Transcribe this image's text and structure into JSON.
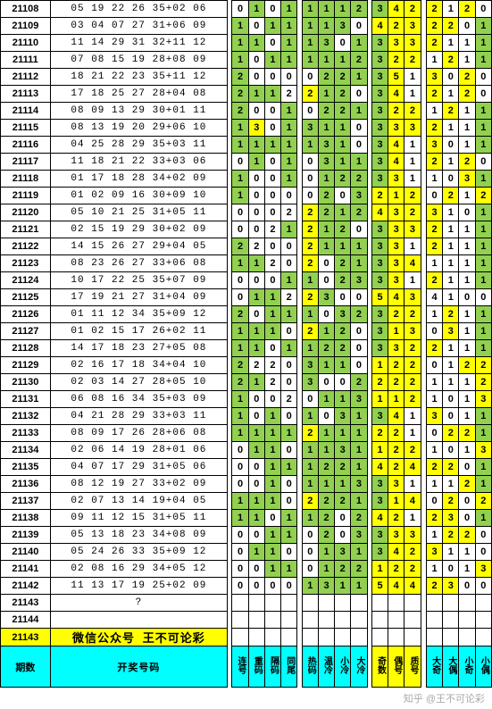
{
  "rows": [
    {
      "p": "21108",
      "n": "05 19 22 26 35+02 06",
      "s": [
        0,
        1,
        0,
        1,
        1,
        1,
        1,
        2,
        3,
        4,
        2,
        2,
        1,
        2,
        0
      ]
    },
    {
      "p": "21109",
      "n": "03 04 07 27 31+06 09",
      "s": [
        1,
        0,
        1,
        1,
        1,
        1,
        3,
        0,
        4,
        2,
        3,
        2,
        2,
        0,
        1
      ]
    },
    {
      "p": "21110",
      "n": "11 14 29 31 32+11 12",
      "s": [
        1,
        1,
        0,
        1,
        1,
        3,
        0,
        1,
        3,
        3,
        3,
        2,
        1,
        1,
        1
      ]
    },
    {
      "p": "21111",
      "n": "07 08 15 19 28+08 09",
      "s": [
        1,
        0,
        1,
        1,
        1,
        1,
        1,
        2,
        3,
        2,
        2,
        1,
        2,
        1,
        1
      ]
    },
    {
      "p": "21112",
      "n": "18 21 22 23 35+11 12",
      "s": [
        2,
        0,
        0,
        0,
        0,
        2,
        2,
        1,
        3,
        5,
        1,
        3,
        0,
        2,
        0
      ]
    },
    {
      "p": "21113",
      "n": "17 18 25 27 28+04 08",
      "s": [
        2,
        1,
        1,
        2,
        2,
        1,
        2,
        0,
        3,
        4,
        1,
        2,
        1,
        2,
        0
      ]
    },
    {
      "p": "21114",
      "n": "08 09 13 29 30+01 11",
      "s": [
        2,
        0,
        0,
        1,
        0,
        2,
        2,
        1,
        3,
        2,
        2,
        1,
        2,
        1,
        1
      ]
    },
    {
      "p": "21115",
      "n": "08 13 19 20 29+06 10",
      "s": [
        1,
        3,
        0,
        1,
        3,
        1,
        1,
        0,
        3,
        3,
        3,
        2,
        1,
        1,
        1
      ]
    },
    {
      "p": "21116",
      "n": "04 25 28 29 35+03 11",
      "s": [
        1,
        1,
        1,
        1,
        1,
        3,
        1,
        0,
        3,
        4,
        1,
        3,
        0,
        1,
        1
      ]
    },
    {
      "p": "21117",
      "n": "11 18 21 22 33+03 06",
      "s": [
        0,
        1,
        0,
        1,
        0,
        3,
        1,
        1,
        3,
        4,
        1,
        2,
        1,
        2,
        0
      ]
    },
    {
      "p": "21118",
      "n": "01 17 18 28 34+02 09",
      "s": [
        1,
        0,
        0,
        1,
        0,
        1,
        2,
        2,
        3,
        3,
        1,
        1,
        0,
        3,
        1
      ]
    },
    {
      "p": "21119",
      "n": "01 02 09 16 30+09 10",
      "s": [
        1,
        0,
        0,
        0,
        0,
        2,
        0,
        3,
        2,
        1,
        2,
        0,
        2,
        1,
        2
      ]
    },
    {
      "p": "21120",
      "n": "05 10 21 25 31+05 11",
      "s": [
        0,
        0,
        0,
        2,
        2,
        2,
        1,
        2,
        4,
        3,
        2,
        3,
        1,
        0,
        1
      ]
    },
    {
      "p": "21121",
      "n": "02 15 19 29 30+02 09",
      "s": [
        0,
        0,
        2,
        1,
        2,
        1,
        2,
        0,
        3,
        3,
        3,
        2,
        1,
        1,
        1
      ]
    },
    {
      "p": "21122",
      "n": "14 15 26 27 29+04 05",
      "s": [
        2,
        2,
        0,
        0,
        2,
        1,
        1,
        1,
        3,
        3,
        1,
        2,
        1,
        1,
        1
      ]
    },
    {
      "p": "21123",
      "n": "08 23 26 27 33+06 08",
      "s": [
        1,
        1,
        2,
        0,
        2,
        0,
        2,
        1,
        3,
        3,
        4,
        1,
        1,
        1,
        1
      ]
    },
    {
      "p": "21124",
      "n": "10 17 22 25 35+07 09",
      "s": [
        0,
        0,
        0,
        1,
        1,
        0,
        2,
        3,
        3,
        3,
        1,
        2,
        1,
        1,
        1
      ]
    },
    {
      "p": "21125",
      "n": "17 19 21 27 31+04 09",
      "s": [
        0,
        1,
        1,
        2,
        2,
        3,
        0,
        0,
        5,
        4,
        3,
        4,
        1,
        0,
        0
      ]
    },
    {
      "p": "21126",
      "n": "01 11 12 34 35+09 12",
      "s": [
        2,
        0,
        1,
        1,
        1,
        0,
        3,
        2,
        3,
        2,
        2,
        1,
        2,
        1,
        1
      ]
    },
    {
      "p": "21127",
      "n": "01 02 15 17 26+02 11",
      "s": [
        1,
        1,
        1,
        0,
        2,
        1,
        2,
        0,
        3,
        1,
        3,
        0,
        3,
        1,
        1
      ]
    },
    {
      "p": "21128",
      "n": "14 17 18 23 27+05 08",
      "s": [
        1,
        1,
        0,
        1,
        1,
        2,
        2,
        0,
        3,
        3,
        2,
        2,
        1,
        1,
        1
      ]
    },
    {
      "p": "21129",
      "n": "02 16 17 18 34+04 10",
      "s": [
        2,
        2,
        2,
        0,
        3,
        1,
        1,
        0,
        1,
        2,
        2,
        0,
        1,
        2,
        2
      ]
    },
    {
      "p": "21130",
      "n": "02 03 14 27 28+05 10",
      "s": [
        2,
        1,
        2,
        0,
        3,
        0,
        0,
        2,
        2,
        2,
        2,
        1,
        1,
        1,
        2
      ]
    },
    {
      "p": "21131",
      "n": "06 08 16 34 35+03 09",
      "s": [
        1,
        0,
        0,
        2,
        0,
        1,
        1,
        3,
        1,
        1,
        2,
        1,
        0,
        1,
        3
      ]
    },
    {
      "p": "21132",
      "n": "04 21 28 29 33+03 11",
      "s": [
        1,
        0,
        1,
        0,
        1,
        0,
        3,
        1,
        3,
        4,
        1,
        3,
        0,
        1,
        1
      ]
    },
    {
      "p": "21133",
      "n": "08 09 17 26 28+06 08",
      "s": [
        1,
        1,
        1,
        1,
        2,
        1,
        1,
        1,
        2,
        2,
        1,
        0,
        2,
        2,
        1
      ]
    },
    {
      "p": "21134",
      "n": "02 06 14 19 28+01 06",
      "s": [
        0,
        1,
        1,
        0,
        1,
        1,
        3,
        1,
        1,
        2,
        2,
        1,
        0,
        1,
        3
      ]
    },
    {
      "p": "21135",
      "n": "04 07 17 29 31+05 06",
      "s": [
        0,
        0,
        1,
        1,
        1,
        2,
        2,
        1,
        4,
        2,
        4,
        2,
        2,
        0,
        1
      ]
    },
    {
      "p": "21136",
      "n": "08 12 19 27 33+02 09",
      "s": [
        0,
        0,
        1,
        0,
        1,
        1,
        1,
        3,
        3,
        3,
        1,
        1,
        1,
        2,
        1
      ]
    },
    {
      "p": "21137",
      "n": "02 07 13 14 19+04 05",
      "s": [
        1,
        1,
        1,
        0,
        2,
        2,
        2,
        1,
        3,
        1,
        4,
        0,
        2,
        0,
        2
      ]
    },
    {
      "p": "21138",
      "n": "09 11 12 15 31+05 11",
      "s": [
        1,
        1,
        0,
        1,
        1,
        2,
        0,
        2,
        4,
        2,
        1,
        2,
        3,
        0,
        1
      ]
    },
    {
      "p": "21139",
      "n": "05 13 18 23 34+08 09",
      "s": [
        0,
        0,
        1,
        1,
        0,
        2,
        0,
        3,
        3,
        3,
        3,
        1,
        2,
        2,
        0
      ]
    },
    {
      "p": "21140",
      "n": "05 24 26 33 35+09 12",
      "s": [
        0,
        1,
        1,
        0,
        0,
        1,
        3,
        1,
        3,
        4,
        2,
        3,
        1,
        1,
        0
      ]
    },
    {
      "p": "21141",
      "n": "02 08 16 29 34+05 12",
      "s": [
        0,
        0,
        1,
        1,
        0,
        1,
        2,
        2,
        1,
        2,
        2,
        1,
        0,
        1,
        3
      ]
    },
    {
      "p": "21142",
      "n": "11 13 17 19 25+02 09",
      "s": [
        0,
        0,
        0,
        0,
        1,
        3,
        1,
        1,
        5,
        4,
        4,
        2,
        3,
        0,
        0
      ]
    },
    {
      "p": "21143",
      "n": "?",
      "s": []
    },
    {
      "p": "21144",
      "n": "",
      "s": []
    }
  ],
  "wechat_period": "21143",
  "wechat_text": "微信公众号 王不可论彩",
  "hdr_period": "期数",
  "hdr_numbers": "开奖号码",
  "stat_hdrs": [
    "连号",
    "重码",
    "隔码",
    "同尾",
    "热码",
    "温冷",
    "小冷",
    "大冷",
    "奇数",
    "偶号",
    "质号",
    "大奇",
    "大偶",
    "小奇",
    "小偶"
  ],
  "hl_rules": {
    "g": [
      [
        0,
        1
      ],
      [
        0,
        2
      ],
      [
        1,
        1
      ],
      [
        2,
        1
      ],
      [
        3,
        1
      ],
      [
        3,
        3
      ],
      [
        4,
        1
      ],
      [
        4,
        3
      ],
      [
        5,
        1
      ],
      [
        5,
        2
      ],
      [
        5,
        3
      ],
      [
        6,
        1
      ],
      [
        6,
        2
      ],
      [
        6,
        3
      ],
      [
        7,
        1
      ],
      [
        7,
        2
      ],
      [
        7,
        3
      ],
      [
        8,
        3
      ],
      [
        14,
        1
      ]
    ],
    "y": [
      [
        0,
        3
      ],
      [
        1,
        3
      ],
      [
        2,
        3
      ],
      [
        4,
        2
      ],
      [
        8,
        1
      ],
      [
        8,
        2
      ],
      [
        9,
        1
      ],
      [
        9,
        2
      ],
      [
        9,
        3
      ],
      [
        10,
        2
      ],
      [
        10,
        3
      ],
      [
        11,
        2
      ],
      [
        11,
        3
      ],
      [
        12,
        2
      ],
      [
        12,
        3
      ],
      [
        13,
        2
      ],
      [
        13,
        3
      ],
      [
        14,
        2
      ],
      [
        14,
        3
      ]
    ]
  },
  "yellow_col": [
    8,
    9,
    10
  ],
  "watermark": "知乎 @王不可论彩"
}
